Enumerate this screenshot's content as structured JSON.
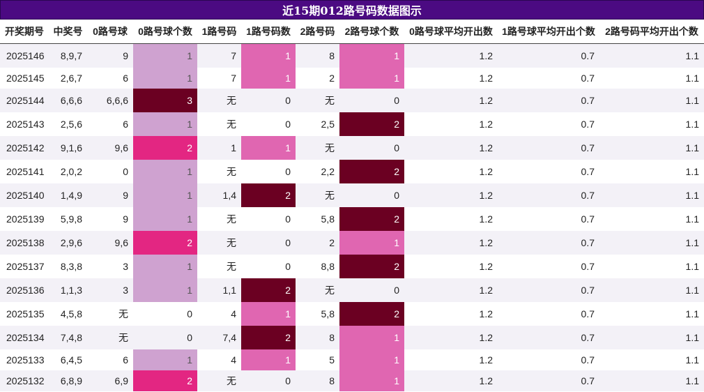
{
  "title": "近15期012路号码数据图示",
  "headers": [
    "开奖期号",
    "中奖号",
    "0路号球",
    "0路号球个数",
    "1路号码",
    "1路号码数",
    "2路号码",
    "2路号球个数",
    "0路号球平均开出数",
    "1路号球平均开出个数",
    "2路号码平均开出个数"
  ],
  "rows": [
    {
      "period": "2025146",
      "numbers": "8,9,7",
      "z0": "9",
      "z0c": "1",
      "z1": "7",
      "z1c": "1",
      "z2": "8",
      "z2c": "1",
      "a0": "1.2",
      "a1": "0.7",
      "a2": "1.1"
    },
    {
      "period": "2025145",
      "numbers": "2,6,7",
      "z0": "6",
      "z0c": "1",
      "z1": "7",
      "z1c": "1",
      "z2": "2",
      "z2c": "1",
      "a0": "1.2",
      "a1": "0.7",
      "a2": "1.1"
    },
    {
      "period": "2025144",
      "numbers": "6,6,6",
      "z0": "6,6,6",
      "z0c": "3",
      "z1": "无",
      "z1c": "0",
      "z2": "无",
      "z2c": "0",
      "a0": "1.2",
      "a1": "0.7",
      "a2": "1.1"
    },
    {
      "period": "2025143",
      "numbers": "2,5,6",
      "z0": "6",
      "z0c": "1",
      "z1": "无",
      "z1c": "0",
      "z2": "2,5",
      "z2c": "2",
      "a0": "1.2",
      "a1": "0.7",
      "a2": "1.1"
    },
    {
      "period": "2025142",
      "numbers": "9,1,6",
      "z0": "9,6",
      "z0c": "2",
      "z1": "1",
      "z1c": "1",
      "z2": "无",
      "z2c": "0",
      "a0": "1.2",
      "a1": "0.7",
      "a2": "1.1"
    },
    {
      "period": "2025141",
      "numbers": "2,0,2",
      "z0": "0",
      "z0c": "1",
      "z1": "无",
      "z1c": "0",
      "z2": "2,2",
      "z2c": "2",
      "a0": "1.2",
      "a1": "0.7",
      "a2": "1.1"
    },
    {
      "period": "2025140",
      "numbers": "1,4,9",
      "z0": "9",
      "z0c": "1",
      "z1": "1,4",
      "z1c": "2",
      "z2": "无",
      "z2c": "0",
      "a0": "1.2",
      "a1": "0.7",
      "a2": "1.1"
    },
    {
      "period": "2025139",
      "numbers": "5,9,8",
      "z0": "9",
      "z0c": "1",
      "z1": "无",
      "z1c": "0",
      "z2": "5,8",
      "z2c": "2",
      "a0": "1.2",
      "a1": "0.7",
      "a2": "1.1"
    },
    {
      "period": "2025138",
      "numbers": "2,9,6",
      "z0": "9,6",
      "z0c": "2",
      "z1": "无",
      "z1c": "0",
      "z2": "2",
      "z2c": "1",
      "a0": "1.2",
      "a1": "0.7",
      "a2": "1.1"
    },
    {
      "period": "2025137",
      "numbers": "8,3,8",
      "z0": "3",
      "z0c": "1",
      "z1": "无",
      "z1c": "0",
      "z2": "8,8",
      "z2c": "2",
      "a0": "1.2",
      "a1": "0.7",
      "a2": "1.1"
    },
    {
      "period": "2025136",
      "numbers": "1,1,3",
      "z0": "3",
      "z0c": "1",
      "z1": "1,1",
      "z1c": "2",
      "z2": "无",
      "z2c": "0",
      "a0": "1.2",
      "a1": "0.7",
      "a2": "1.1"
    },
    {
      "period": "2025135",
      "numbers": "4,5,8",
      "z0": "无",
      "z0c": "0",
      "z1": "4",
      "z1c": "1",
      "z2": "5,8",
      "z2c": "2",
      "a0": "1.2",
      "a1": "0.7",
      "a2": "1.1"
    },
    {
      "period": "2025134",
      "numbers": "7,4,8",
      "z0": "无",
      "z0c": "0",
      "z1": "7,4",
      "z1c": "2",
      "z2": "8",
      "z2c": "1",
      "a0": "1.2",
      "a1": "0.7",
      "a2": "1.1"
    },
    {
      "period": "2025133",
      "numbers": "6,4,5",
      "z0": "6",
      "z0c": "1",
      "z1": "4",
      "z1c": "1",
      "z2": "5",
      "z2c": "1",
      "a0": "1.2",
      "a1": "0.7",
      "a2": "1.1"
    },
    {
      "period": "2025132",
      "numbers": "6,8,9",
      "z0": "6,9",
      "z0c": "2",
      "z1": "无",
      "z1c": "0",
      "z2": "8",
      "z2c": "1",
      "a0": "1.2",
      "a1": "0.7",
      "a2": "1.1"
    }
  ],
  "colors": {
    "title_bg": "#4b0a82",
    "count0_level1": "#cfa2d0",
    "count0_level2": "#e32682",
    "count0_level3": "#6b0022",
    "count_level1": "#e066b1",
    "count_level2": "#6b0022",
    "row_stripe": "#f3f1f7"
  }
}
